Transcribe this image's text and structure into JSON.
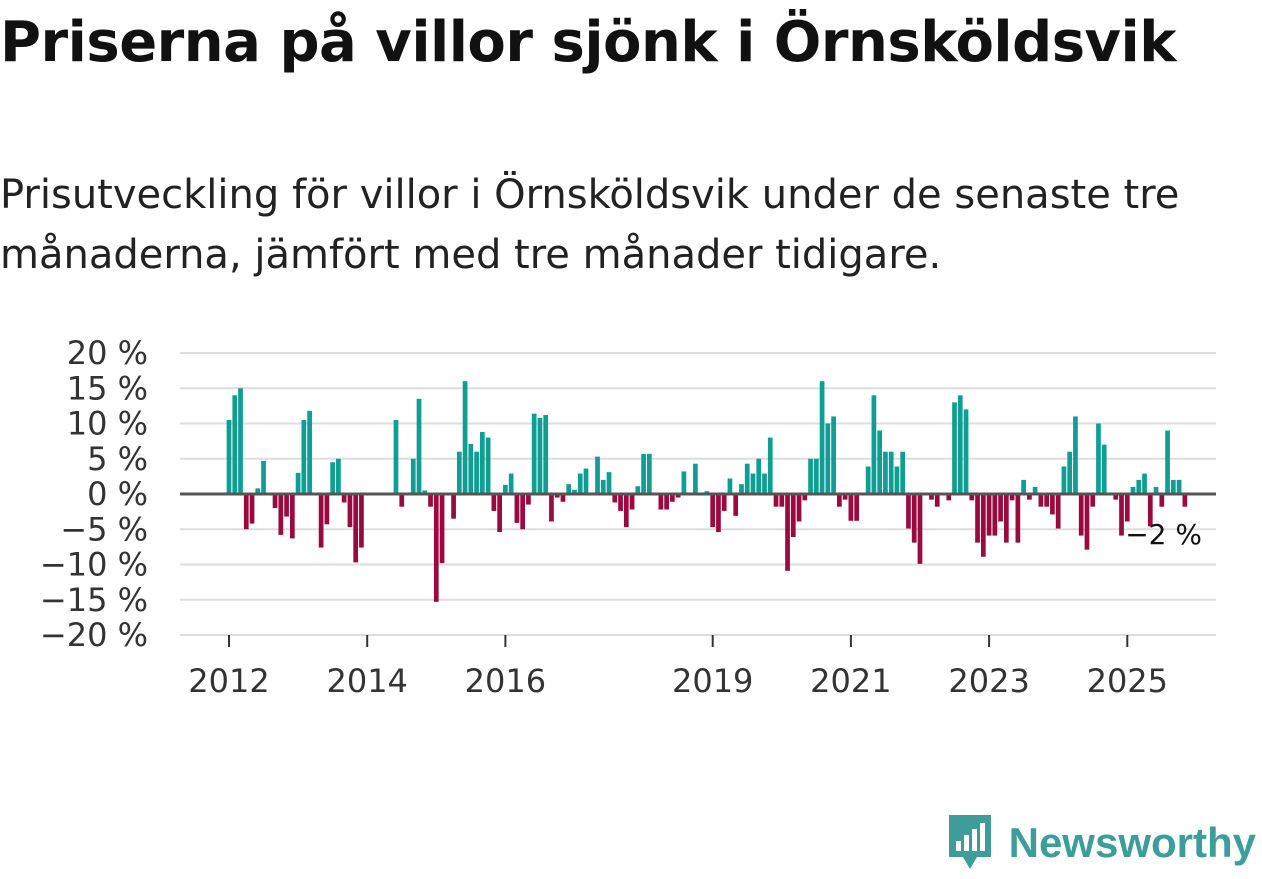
{
  "title": "Priserna på villor sjönk i Örnsköldsvik",
  "subtitle": "Prisutveckling för villor i Örnsköldsvik under de senaste tre månaderna, jämfört med tre månader tidigare.",
  "brand": {
    "name": "Newsworthy",
    "icon": "newsworthy-logo-icon",
    "color": "#3d9d98"
  },
  "colors": {
    "positive": "#0e9e93",
    "negative": "#9b0a3e",
    "grid": "#dddddd",
    "zero": "#555555"
  },
  "chart_data": {
    "type": "bar",
    "title": "Priserna på villor sjönk i Örnsköldsvik",
    "xlabel": "",
    "ylabel": "",
    "ylim": [
      -20,
      20
    ],
    "grid": true,
    "y_ticks": [
      {
        "value": 20,
        "label": "20 %"
      },
      {
        "value": 15,
        "label": "15 %"
      },
      {
        "value": 10,
        "label": "10 %"
      },
      {
        "value": 5,
        "label": "5 %"
      },
      {
        "value": 0,
        "label": "0 %"
      },
      {
        "value": -5,
        "label": "−5 %"
      },
      {
        "value": -10,
        "label": "−10 %"
      },
      {
        "value": -15,
        "label": "−15 %"
      },
      {
        "value": -20,
        "label": "−20 %"
      }
    ],
    "x_ticks": [
      {
        "value": 2012,
        "label": "2012"
      },
      {
        "value": 2014,
        "label": "2014"
      },
      {
        "value": 2016,
        "label": "2016"
      },
      {
        "value": 2019,
        "label": "2019"
      },
      {
        "value": 2021,
        "label": "2021"
      },
      {
        "value": 2023,
        "label": "2023"
      },
      {
        "value": 2025,
        "label": "2025"
      }
    ],
    "x_start": 2012,
    "x_step": 0.08333,
    "unit": "%",
    "values": [
      10.5,
      14,
      15,
      -5,
      -4.2,
      0.8,
      4.7,
      0,
      -2,
      -5.8,
      -3.2,
      -6.3,
      3,
      10.5,
      11.8,
      0,
      -7.6,
      -4.3,
      4.5,
      5,
      -1.2,
      -4.7,
      -9.7,
      -7.6,
      0,
      0,
      0,
      0,
      0,
      10.5,
      -1.8,
      0,
      5,
      13.5,
      0.5,
      -1.8,
      -15.3,
      -9.8,
      0,
      -3.5,
      6,
      16,
      7.1,
      6,
      8.8,
      8,
      -2.4,
      -5.4,
      1.3,
      2.9,
      -4.1,
      -5,
      -1.5,
      11.4,
      10.8,
      11.2,
      -3.9,
      -0.5,
      -1.1,
      1.4,
      0.6,
      2.9,
      3.6,
      0,
      5.3,
      2,
      3.1,
      -1.2,
      -2.4,
      -4.7,
      -2.2,
      1.1,
      5.7,
      5.7,
      0,
      -2.2,
      -2.2,
      -1.1,
      -0.5,
      3.2,
      0,
      4.3,
      0,
      0.4,
      -4.7,
      -5.4,
      -2.4,
      2.2,
      -3.1,
      1.4,
      4.3,
      2.9,
      5,
      2.9,
      8,
      -1.8,
      -1.8,
      -10.9,
      -6.1,
      -3.9,
      -0.9,
      5,
      5,
      16,
      10,
      11,
      -1.8,
      -0.8,
      -3.8,
      -3.8,
      0,
      3.9,
      14,
      9,
      6,
      6,
      3.9,
      6,
      -4.9,
      -6.9,
      -9.9,
      0,
      -0.8,
      -1.8,
      0,
      -0.9,
      13,
      14,
      12,
      -0.9,
      -6.9,
      -8.9,
      -5.9,
      -5.9,
      -3.9,
      -6.9,
      -0.9,
      -6.9,
      2,
      -0.8,
      1,
      -1.8,
      -1.8,
      -2.9,
      -4.9,
      3.9,
      6,
      11,
      -5.9,
      -7.9,
      -1.8,
      10,
      7,
      0,
      -0.8,
      -5.9,
      -3.9,
      1,
      2,
      2.9,
      -4.6,
      1,
      -1.8,
      9,
      2,
      2,
      -1.8
    ]
  },
  "annotation": {
    "label": "−2 %",
    "value": -2
  }
}
